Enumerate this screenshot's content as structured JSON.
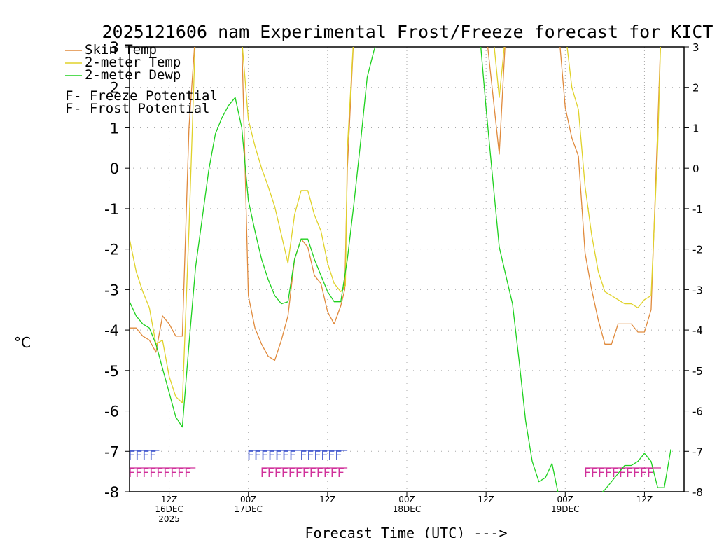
{
  "chart_data": {
    "type": "line",
    "title": "2025121606 nam Experimental Frost/Freeze forecast for KICT",
    "ylabel": "°C",
    "xlabel": "Forecast Time (UTC) --->",
    "ylim": [
      -8,
      3
    ],
    "yticks": [
      -8,
      -7,
      -6,
      -5,
      -4,
      -3,
      -2,
      -1,
      0,
      1,
      2,
      3
    ],
    "xlim": [
      6,
      90
    ],
    "grid": true,
    "x_ticks": [
      {
        "x": 12,
        "label": "12Z",
        "sub": [
          "16DEC",
          "2025"
        ]
      },
      {
        "x": 24,
        "label": "00Z",
        "sub": [
          "17DEC"
        ]
      },
      {
        "x": 36,
        "label": "12Z",
        "sub": []
      },
      {
        "x": 48,
        "label": "00Z",
        "sub": [
          "18DEC"
        ]
      },
      {
        "x": 60,
        "label": "12Z",
        "sub": []
      },
      {
        "x": 72,
        "label": "00Z",
        "sub": [
          "19DEC"
        ]
      },
      {
        "x": 84,
        "label": "12Z",
        "sub": []
      }
    ],
    "series": [
      {
        "name": "Skin Temp",
        "color": "#e08a3c",
        "points": [
          [
            6,
            -3.95
          ],
          [
            7,
            -3.95
          ],
          [
            8,
            -4.15
          ],
          [
            9,
            -4.25
          ],
          [
            10,
            -4.55
          ],
          [
            11,
            -3.65
          ],
          [
            12,
            -3.85
          ],
          [
            13,
            -4.15
          ],
          [
            14,
            -4.15
          ],
          [
            15,
            1.0
          ],
          [
            16,
            3.4
          ],
          [
            22,
            3.4
          ],
          [
            23,
            3.2
          ],
          [
            24,
            -3.15
          ],
          [
            25,
            -3.95
          ],
          [
            26,
            -4.35
          ],
          [
            27,
            -4.65
          ],
          [
            28,
            -4.75
          ],
          [
            29,
            -4.25
          ],
          [
            30,
            -3.65
          ],
          [
            31,
            -2.25
          ],
          [
            32,
            -1.75
          ],
          [
            33,
            -1.95
          ],
          [
            34,
            -2.65
          ],
          [
            35,
            -2.85
          ],
          [
            36,
            -3.55
          ],
          [
            37,
            -3.85
          ],
          [
            38,
            -3.4
          ],
          [
            38.6,
            -3.0
          ],
          [
            39,
            0.0
          ],
          [
            40,
            3.4
          ],
          [
            60,
            3.4
          ],
          [
            62,
            0.35
          ],
          [
            63,
            3.4
          ],
          [
            71,
            3.4
          ],
          [
            72,
            1.5
          ],
          [
            73,
            0.75
          ],
          [
            74,
            0.3
          ],
          [
            75,
            -2.1
          ],
          [
            76,
            -3.0
          ],
          [
            77,
            -3.75
          ],
          [
            78,
            -4.35
          ],
          [
            79,
            -4.35
          ],
          [
            80,
            -3.85
          ],
          [
            81,
            -3.85
          ],
          [
            82,
            -3.85
          ],
          [
            83,
            -4.05
          ],
          [
            84,
            -4.05
          ],
          [
            85,
            -3.5
          ],
          [
            86,
            1.0
          ],
          [
            86.5,
            3.4
          ]
        ]
      },
      {
        "name": "2-meter Temp",
        "color": "#e0d22a",
        "points": [
          [
            6,
            -1.75
          ],
          [
            7,
            -2.55
          ],
          [
            8,
            -3.05
          ],
          [
            9,
            -3.45
          ],
          [
            10,
            -4.35
          ],
          [
            11,
            -4.25
          ],
          [
            12,
            -5.15
          ],
          [
            13,
            -5.65
          ],
          [
            14,
            -5.8
          ],
          [
            15,
            -1.5
          ],
          [
            16,
            3.4
          ],
          [
            22,
            3.4
          ],
          [
            23,
            3.2
          ],
          [
            24,
            1.2
          ],
          [
            25,
            0.55
          ],
          [
            26,
            0.0
          ],
          [
            27,
            -0.45
          ],
          [
            28,
            -0.95
          ],
          [
            29,
            -1.65
          ],
          [
            30,
            -2.35
          ],
          [
            31,
            -1.15
          ],
          [
            32,
            -0.55
          ],
          [
            33,
            -0.55
          ],
          [
            34,
            -1.15
          ],
          [
            35,
            -1.55
          ],
          [
            36,
            -2.35
          ],
          [
            37,
            -2.85
          ],
          [
            38,
            -3.05
          ],
          [
            38.7,
            -2.9
          ],
          [
            39,
            0.5
          ],
          [
            40,
            3.4
          ],
          [
            61,
            3.4
          ],
          [
            62,
            1.75
          ],
          [
            63,
            3.4
          ],
          [
            72,
            3.4
          ],
          [
            73,
            2.0
          ],
          [
            74,
            1.45
          ],
          [
            75,
            -0.45
          ],
          [
            76,
            -1.65
          ],
          [
            77,
            -2.55
          ],
          [
            78,
            -3.05
          ],
          [
            79,
            -3.15
          ],
          [
            80,
            -3.25
          ],
          [
            81,
            -3.35
          ],
          [
            82,
            -3.35
          ],
          [
            83,
            -3.45
          ],
          [
            84,
            -3.25
          ],
          [
            85,
            -3.15
          ],
          [
            86,
            0.5
          ],
          [
            86.5,
            3.4
          ]
        ]
      },
      {
        "name": "2-meter Dewp",
        "color": "#1ed11e",
        "points": [
          [
            6,
            -3.3
          ],
          [
            7,
            -3.65
          ],
          [
            8,
            -3.85
          ],
          [
            9,
            -3.95
          ],
          [
            10,
            -4.35
          ],
          [
            11,
            -4.95
          ],
          [
            12,
            -5.55
          ],
          [
            13,
            -6.15
          ],
          [
            14,
            -6.4
          ],
          [
            15,
            -4.35
          ],
          [
            16,
            -2.45
          ],
          [
            17,
            -1.25
          ],
          [
            18,
            -0.05
          ],
          [
            19,
            0.85
          ],
          [
            20,
            1.25
          ],
          [
            21,
            1.55
          ],
          [
            22,
            1.75
          ],
          [
            23,
            1.0
          ],
          [
            24,
            -0.8
          ],
          [
            25,
            -1.55
          ],
          [
            26,
            -2.25
          ],
          [
            27,
            -2.75
          ],
          [
            28,
            -3.15
          ],
          [
            29,
            -3.35
          ],
          [
            30,
            -3.3
          ],
          [
            31,
            -2.25
          ],
          [
            32,
            -1.75
          ],
          [
            33,
            -1.75
          ],
          [
            34,
            -2.25
          ],
          [
            35,
            -2.65
          ],
          [
            36,
            -3.05
          ],
          [
            37,
            -3.3
          ],
          [
            38,
            -3.3
          ],
          [
            39,
            -2.25
          ],
          [
            40,
            -0.85
          ],
          [
            41,
            0.65
          ],
          [
            42,
            2.25
          ],
          [
            43,
            2.9
          ],
          [
            44,
            3.4
          ],
          [
            59,
            3.4
          ],
          [
            60,
            1.5
          ],
          [
            61,
            -0.25
          ],
          [
            62,
            -1.95
          ],
          [
            63,
            -2.65
          ],
          [
            64,
            -3.35
          ],
          [
            65,
            -4.75
          ],
          [
            66,
            -6.25
          ],
          [
            67,
            -7.25
          ],
          [
            68,
            -7.75
          ],
          [
            69,
            -7.65
          ],
          [
            70,
            -7.3
          ],
          [
            71,
            -8.1
          ],
          [
            77,
            -8.1
          ],
          [
            78,
            -7.95
          ],
          [
            79,
            -7.75
          ],
          [
            80,
            -7.55
          ],
          [
            81,
            -7.35
          ],
          [
            82,
            -7.35
          ],
          [
            83,
            -7.25
          ],
          [
            84,
            -7.05
          ],
          [
            85,
            -7.25
          ],
          [
            86,
            -7.9
          ],
          [
            87,
            -7.9
          ],
          [
            88,
            -6.95
          ]
        ]
      }
    ],
    "frost": {
      "label": "F",
      "color": "#4a5fd0",
      "runs": [
        [
          6,
          10.5
        ],
        [
          24,
          32
        ],
        [
          32,
          39
        ]
      ]
    },
    "freeze": {
      "label": "F",
      "color": "#d0309a",
      "runs": [
        [
          6,
          16
        ],
        [
          26,
          39
        ],
        [
          75,
          86.5
        ]
      ]
    },
    "legend": [
      {
        "label": "Skin Temp",
        "color": "#e08a3c"
      },
      {
        "label": "2-meter Temp",
        "color": "#e0d22a"
      },
      {
        "label": "2-meter Dewp",
        "color": "#1ed11e"
      }
    ],
    "legend_flags": [
      {
        "letter": "F",
        "text": " - Freeze Potential",
        "color": "#d0309a"
      },
      {
        "letter": "F",
        "text": " - Frost Potential",
        "color": "#4a5fd0"
      }
    ]
  }
}
